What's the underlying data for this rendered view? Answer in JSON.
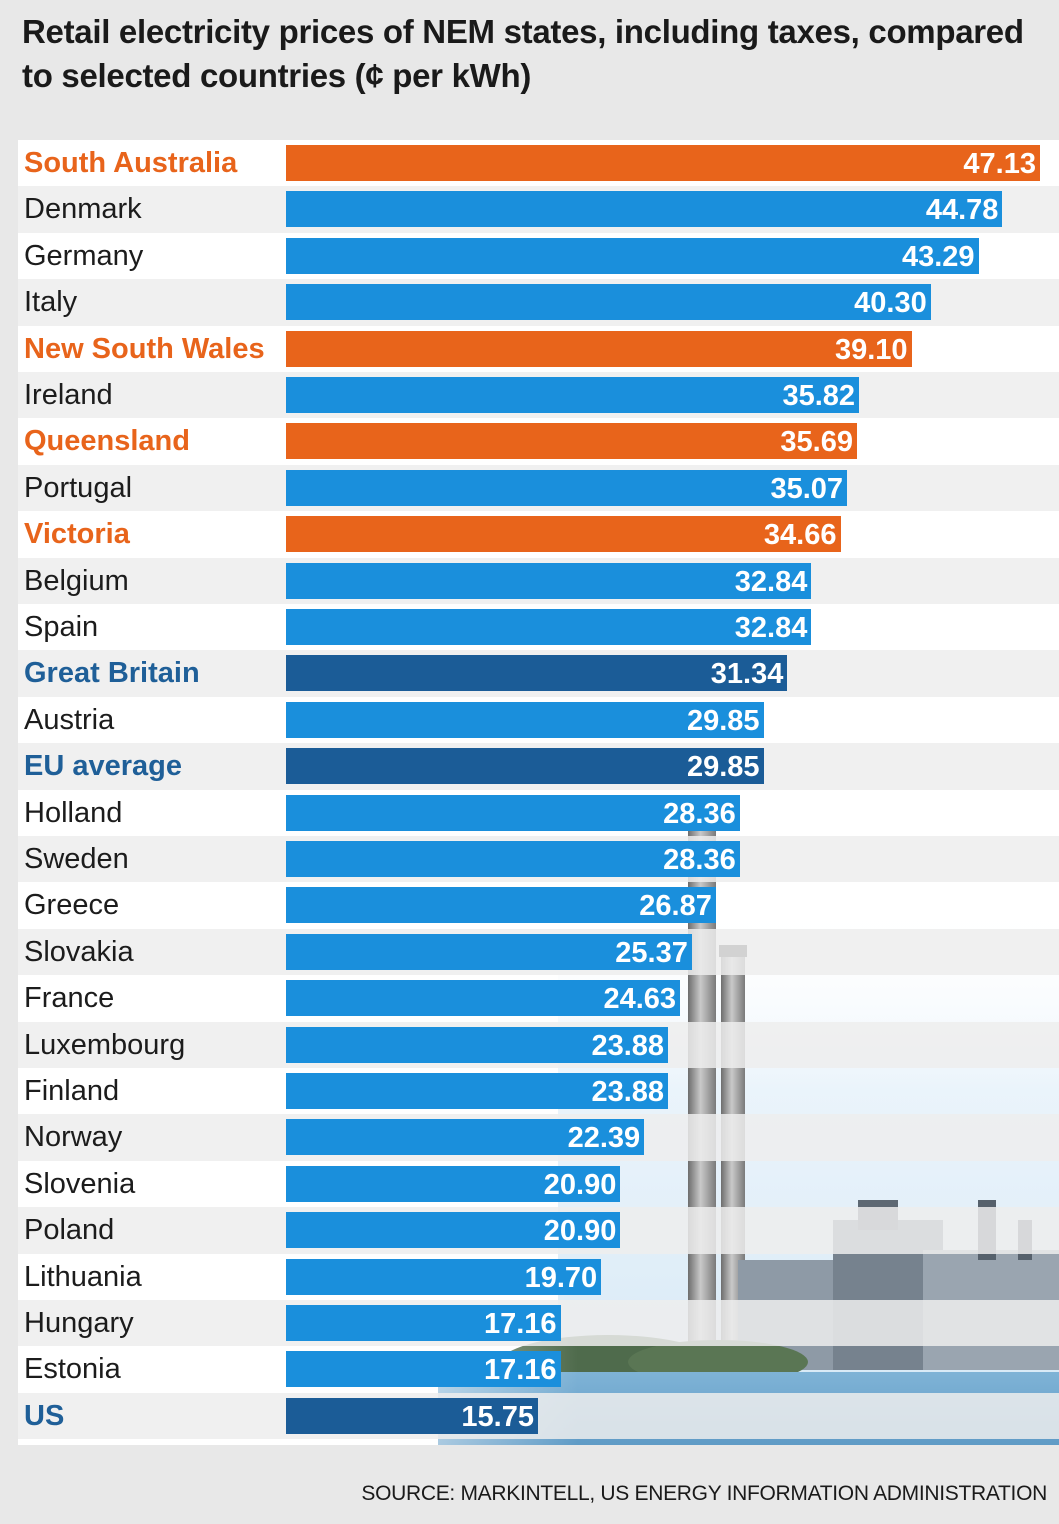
{
  "title": "Retail electricity prices of NEM states, including taxes, compared to selected countries (¢ per kWh)",
  "source": "SOURCE: MARKINTELL, US ENERGY INFORMATION ADMINISTRATION",
  "colors": {
    "state": "#e8641b",
    "country": "#1a8fdc",
    "benchmark": "#1b5c97"
  },
  "chart_data": {
    "type": "bar",
    "orientation": "horizontal",
    "title": "Retail electricity prices of NEM states, including taxes, compared to selected countries (¢ per kWh)",
    "xlim": [
      0,
      47.13
    ],
    "categories": [
      "South Australia",
      "Denmark",
      "Germany",
      "Italy",
      "New South Wales",
      "Ireland",
      "Queensland",
      "Portugal",
      "Victoria",
      "Belgium",
      "Spain",
      "Great Britain",
      "Austria",
      "EU average",
      "Holland",
      "Sweden",
      "Greece",
      "Slovakia",
      "France",
      "Luxembourg",
      "Finland",
      "Norway",
      "Slovenia",
      "Poland",
      "Lithuania",
      "Hungary",
      "Estonia",
      "US"
    ],
    "values": [
      47.13,
      44.78,
      43.29,
      40.3,
      39.1,
      35.82,
      35.69,
      35.07,
      34.66,
      32.84,
      32.84,
      31.34,
      29.85,
      29.85,
      28.36,
      28.36,
      26.87,
      25.37,
      24.63,
      23.88,
      23.88,
      22.39,
      20.9,
      20.9,
      19.7,
      17.16,
      17.16,
      15.75
    ],
    "value_labels": [
      "47.13",
      "44.78",
      "43.29",
      "40.30",
      "39.10",
      "35.82",
      "35.69",
      "35.07",
      "34.66",
      "32.84",
      "32.84",
      "31.34",
      "29.85",
      "29.85",
      "28.36",
      "28.36",
      "26.87",
      "25.37",
      "24.63",
      "23.88",
      "23.88",
      "22.39",
      "20.90",
      "20.90",
      "19.70",
      "17.16",
      "17.16",
      "15.75"
    ],
    "groups": [
      "state",
      "country",
      "country",
      "country",
      "state",
      "country",
      "state",
      "country",
      "state",
      "country",
      "country",
      "benchmark",
      "country",
      "benchmark",
      "country",
      "country",
      "country",
      "country",
      "country",
      "country",
      "country",
      "country",
      "country",
      "country",
      "country",
      "country",
      "country",
      "benchmark"
    ]
  }
}
